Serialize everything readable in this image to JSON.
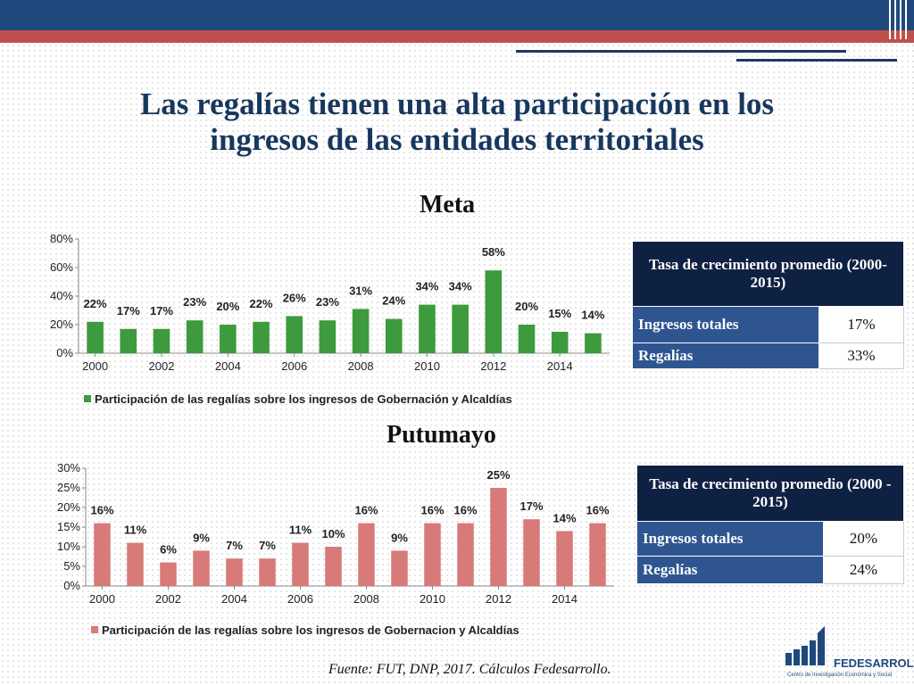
{
  "title_line1": "Las regalías tienen una alta participación en los",
  "title_line2": "ingresos de las entidades territoriales",
  "source_note": "Fuente: FUT, DNP, 2017. Cálculos Fedesarrollo.",
  "logo": {
    "name": "FEDESARROLLO",
    "subtitle": "Centro de Investigación Económica y Social"
  },
  "colors": {
    "header_blue": "#1f497d",
    "header_red": "#c0504d",
    "meta_bar": "#3d9a3d",
    "putumayo_bar": "#d77a78",
    "table_head": "#0f2143",
    "table_label": "#2e5590"
  },
  "tables": {
    "meta": {
      "header": "Tasa de crecimiento promedio (2000-2015)",
      "rows": [
        {
          "label": "Ingresos totales",
          "value": "17%"
        },
        {
          "label": "Regalías",
          "value": "33%"
        }
      ]
    },
    "putumayo": {
      "header": "Tasa de crecimiento promedio (2000 - 2015)",
      "rows": [
        {
          "label": "Ingresos totales",
          "value": "20%"
        },
        {
          "label": "Regalías",
          "value": "24%"
        }
      ]
    }
  },
  "chart_data": [
    {
      "type": "bar",
      "title": "Meta",
      "categories": [
        "2000",
        "2001",
        "2002",
        "2003",
        "2004",
        "2005",
        "2006",
        "2007",
        "2008",
        "2009",
        "2010",
        "2011",
        "2012",
        "2013",
        "2014",
        "2015"
      ],
      "x_tick_labels": [
        "2000",
        "2002",
        "2004",
        "2006",
        "2008",
        "2010",
        "2012",
        "2014"
      ],
      "y_tick_labels": [
        "0%",
        "20%",
        "40%",
        "60%",
        "80%"
      ],
      "ylim": [
        0,
        80
      ],
      "series": [
        {
          "name": "Participación de las regalías sobre los ingresos de Gobernación y Alcaldías",
          "values": [
            22,
            17,
            17,
            23,
            20,
            22,
            26,
            23,
            31,
            24,
            34,
            34,
            58,
            20,
            15,
            14
          ],
          "labels": [
            "22%",
            "17%",
            "17%",
            "23%",
            "20%",
            "22%",
            "26%",
            "23%",
            "31%",
            "24%",
            "34%",
            "34%",
            "58%",
            "20%",
            "15%",
            "14%"
          ]
        }
      ],
      "legend_position": "bottom-left",
      "grid": false
    },
    {
      "type": "bar",
      "title": "Putumayo",
      "categories": [
        "2000",
        "2001",
        "2002",
        "2003",
        "2004",
        "2005",
        "2006",
        "2007",
        "2008",
        "2009",
        "2010",
        "2011",
        "2012",
        "2013",
        "2014",
        "2015"
      ],
      "x_tick_labels": [
        "2000",
        "2002",
        "2004",
        "2006",
        "2008",
        "2010",
        "2012",
        "2014"
      ],
      "y_tick_labels": [
        "0%",
        "5%",
        "10%",
        "15%",
        "20%",
        "25%",
        "30%"
      ],
      "ylim": [
        0,
        30
      ],
      "series": [
        {
          "name": "Participación de las regalías sobre los ingresos de Gobernacion y Alcaldías",
          "values": [
            16,
            11,
            6,
            9,
            7,
            7,
            11,
            10,
            16,
            9,
            16,
            16,
            25,
            17,
            14,
            16
          ],
          "labels": [
            "16%",
            "11%",
            "6%",
            "9%",
            "7%",
            "7%",
            "11%",
            "10%",
            "16%",
            "9%",
            "16%",
            "16%",
            "25%",
            "17%",
            "14%",
            "16%"
          ]
        }
      ],
      "legend_position": "bottom-left",
      "grid": false
    }
  ]
}
